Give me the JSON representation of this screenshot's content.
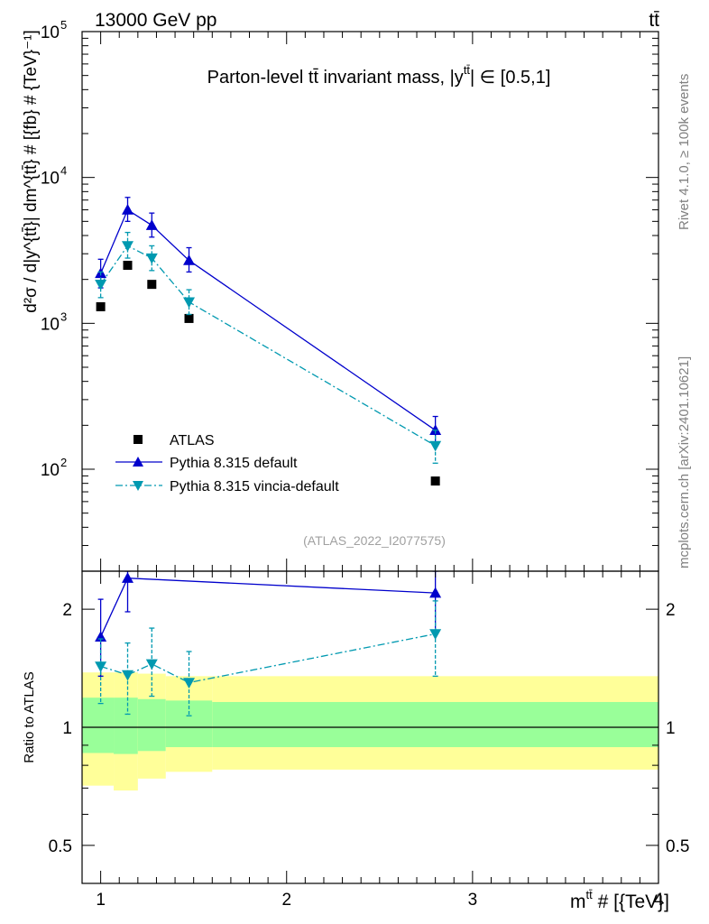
{
  "header": {
    "energy_label": "13000 GeV pp",
    "process_label": "tt̄"
  },
  "side": {
    "rivet_label": "Rivet 4.1.0, ≥ 100k events",
    "mcplots_label": "mcplots.cern.ch [arXiv:2401.10621]"
  },
  "chart_data": [
    {
      "panel": "main",
      "type": "line",
      "title": "Parton-level t̄t invariant mass, |y^{tt̄}| ∈ [0.5,1]",
      "title_text": "Parton-level tt̄ invariant mass, |y",
      "title_sup": "tt̄",
      "title_tail": "| ∈ [0.5,1]",
      "ylabel": "d²σ / d|y^{tt̄}| dm^{tt̄} # [{fb} # {TeV}⁻¹]",
      "yscale": "log",
      "ylim": [
        20,
        100000
      ],
      "xlim": [
        0.9,
        4.0
      ],
      "y_ticks": [
        {
          "v": 100,
          "label": "10",
          "exp": "2"
        },
        {
          "v": 1000,
          "label": "10",
          "exp": "3"
        },
        {
          "v": 10000,
          "label": "10",
          "exp": "4"
        },
        {
          "v": 100000,
          "label": "10",
          "exp": "5"
        }
      ],
      "analysis_tag": "(ATLAS_2022_I2077575)",
      "legend": [
        {
          "name": "ATLAS",
          "marker": "square",
          "color": "#000000"
        },
        {
          "name": "Pythia 8.315 default",
          "marker": "triangle-up",
          "color": "#0000cc"
        },
        {
          "name": "Pythia 8.315 vincia-default",
          "marker": "triangle-down",
          "color": "#0099b0"
        }
      ],
      "series": [
        {
          "name": "ATLAS",
          "x": [
            1.0,
            1.145,
            1.275,
            1.475,
            2.8
          ],
          "y": [
            1300,
            2500,
            1850,
            1080,
            83
          ]
        },
        {
          "name": "Pythia 8.315 default",
          "x": [
            1.0,
            1.145,
            1.275,
            1.475,
            2.8
          ],
          "y": [
            2200,
            6000,
            4700,
            2700,
            185
          ],
          "err_lo": [
            1750,
            5000,
            3900,
            2250,
            145
          ],
          "err_hi": [
            2750,
            7300,
            5700,
            3300,
            230
          ]
        },
        {
          "name": "Pythia 8.315 vincia-default",
          "x": [
            1.0,
            1.145,
            1.275,
            1.475,
            2.8
          ],
          "y": [
            1850,
            3400,
            2800,
            1400,
            145
          ],
          "err_lo": [
            1500,
            2800,
            2300,
            1150,
            110
          ],
          "err_hi": [
            2250,
            4200,
            3400,
            1700,
            185
          ]
        }
      ]
    },
    {
      "panel": "ratio",
      "type": "line",
      "ylabel": "Ratio to ATLAS",
      "yscale": "log",
      "ylim": [
        0.4,
        2.5
      ],
      "xlim": [
        0.9,
        4.0
      ],
      "xlabel": "m^{tt̄} # [{TeV}]",
      "xlabel_text": "m",
      "xlabel_sup": "tt̄",
      "xlabel_tail": " # [{TeV}]",
      "x_ticks": [
        {
          "v": 1,
          "label": "1"
        },
        {
          "v": 2,
          "label": "2"
        },
        {
          "v": 3,
          "label": "3"
        },
        {
          "v": 4,
          "label": "4"
        }
      ],
      "y_ticks": [
        {
          "v": 0.5,
          "label": "0.5"
        },
        {
          "v": 1,
          "label": "1"
        },
        {
          "v": 2,
          "label": "2"
        }
      ],
      "bins": [
        0.9,
        1.07,
        1.2,
        1.35,
        1.6,
        4.0
      ],
      "band_inner": {
        "lo": [
          0.86,
          0.855,
          0.87,
          0.89,
          0.89
        ],
        "hi": [
          1.19,
          1.19,
          1.18,
          1.17,
          1.16
        ],
        "color": "#99ff99"
      },
      "band_outer": {
        "lo": [
          0.71,
          0.69,
          0.74,
          0.77,
          0.78
        ],
        "hi": [
          1.38,
          1.38,
          1.37,
          1.35,
          1.35
        ],
        "color": "#ffff99"
      },
      "series": [
        {
          "name": "Pythia 8.315 default",
          "x": [
            1.0,
            1.145,
            2.8
          ],
          "y": [
            1.7,
            2.4,
            2.2
          ],
          "err_lo": [
            1.35,
            1.97,
            1.75
          ],
          "err_hi": [
            2.12,
            2.5,
            2.5
          ]
        },
        {
          "name": "Pythia 8.315 vincia-default",
          "x": [
            1.0,
            1.145,
            1.275,
            1.475,
            2.8
          ],
          "y": [
            1.43,
            1.36,
            1.45,
            1.3,
            1.73
          ],
          "err_lo": [
            1.15,
            1.08,
            1.2,
            1.07,
            1.35
          ],
          "err_hi": [
            1.68,
            1.64,
            1.79,
            1.56,
            2.1
          ]
        }
      ]
    }
  ]
}
